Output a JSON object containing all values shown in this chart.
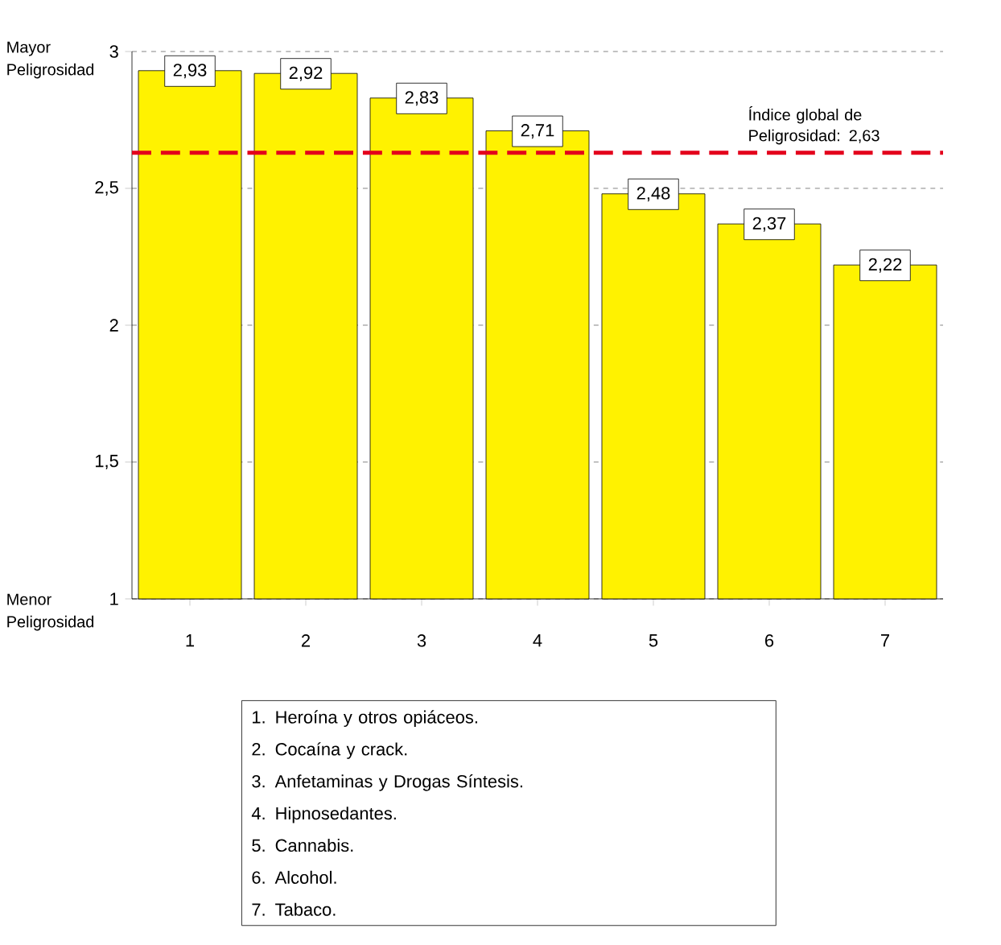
{
  "chart_data": {
    "type": "bar",
    "categories": [
      "1",
      "2",
      "3",
      "4",
      "5",
      "6",
      "7"
    ],
    "values": [
      2.93,
      2.92,
      2.83,
      2.71,
      2.48,
      2.37,
      2.22
    ],
    "value_labels": [
      "2,93",
      "2,92",
      "2,83",
      "2,71",
      "2,48",
      "2,37",
      "2,22"
    ],
    "color": "#fff200",
    "ylim": [
      1,
      3
    ],
    "yticks": [
      1,
      {
        "value": 1.5,
        "label": "1,5"
      },
      2,
      {
        "value": 2.5,
        "label": "2,5"
      },
      3
    ],
    "grid": "y",
    "ref_lines": [
      {
        "axis": "y",
        "value": 2.63,
        "label": "Índice global de Peligrosidad: 2,63",
        "color": "#e3001b",
        "line_style": "dashed"
      }
    ],
    "annotations": [
      "Mayor Peligrosidad",
      "Menor Peligrosidad",
      "1. Heroína y otros opiáceos.",
      "2. Cocaína y crack.",
      "3. Anfetaminas y Drogas Síntesis.",
      "4. Hipnosedantes.",
      "5. Cannabis.",
      "6. Alcohol.",
      "7. Tabaco."
    ]
  }
}
